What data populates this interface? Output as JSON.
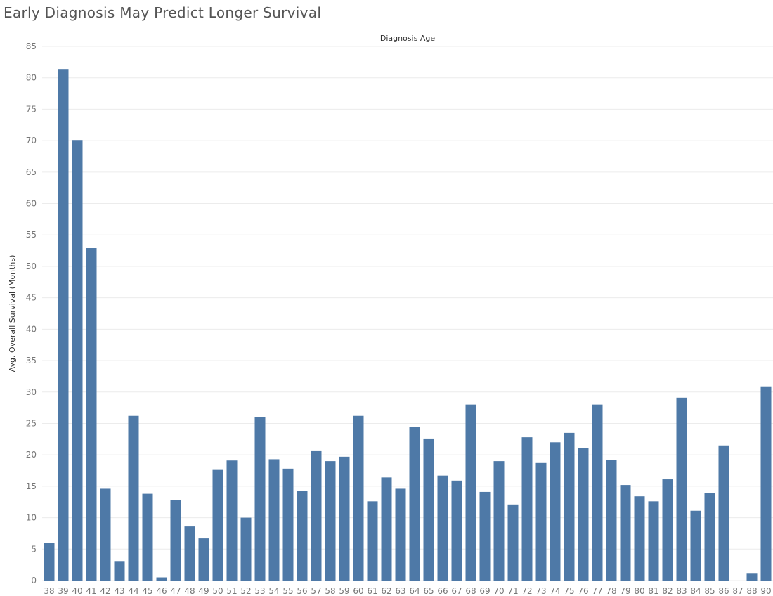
{
  "chart_data": {
    "type": "bar",
    "title": "Early Diagnosis May Predict Longer Survival",
    "xlabel": "Diagnosis Age",
    "ylabel": "Avg. Overall Survival (Months)",
    "color": "#4e79a7",
    "grid": true,
    "ylim": [
      0,
      85
    ],
    "yticks": [
      0,
      5,
      10,
      15,
      20,
      25,
      30,
      35,
      40,
      45,
      50,
      55,
      60,
      65,
      70,
      75,
      80,
      85
    ],
    "categories": [
      "38",
      "39",
      "40",
      "41",
      "42",
      "43",
      "44",
      "45",
      "46",
      "47",
      "48",
      "49",
      "50",
      "51",
      "52",
      "53",
      "54",
      "55",
      "56",
      "57",
      "58",
      "59",
      "60",
      "61",
      "62",
      "63",
      "64",
      "65",
      "66",
      "67",
      "68",
      "69",
      "70",
      "71",
      "72",
      "73",
      "74",
      "75",
      "76",
      "77",
      "78",
      "79",
      "80",
      "81",
      "82",
      "83",
      "84",
      "85",
      "86",
      "87",
      "88",
      "90"
    ],
    "values": [
      6.0,
      81.4,
      70.1,
      52.9,
      14.6,
      3.1,
      26.2,
      13.8,
      0.5,
      12.8,
      8.6,
      6.7,
      17.6,
      19.1,
      10.0,
      26.0,
      19.3,
      17.8,
      14.3,
      20.7,
      19.0,
      19.7,
      26.2,
      12.6,
      16.4,
      14.6,
      24.4,
      22.6,
      16.7,
      15.9,
      28.0,
      14.1,
      19.0,
      12.1,
      22.8,
      18.7,
      22.0,
      23.5,
      21.1,
      28.0,
      19.2,
      15.2,
      13.4,
      12.6,
      16.1,
      29.1,
      11.1,
      13.9,
      21.5,
      null,
      1.2,
      30.9
    ]
  }
}
